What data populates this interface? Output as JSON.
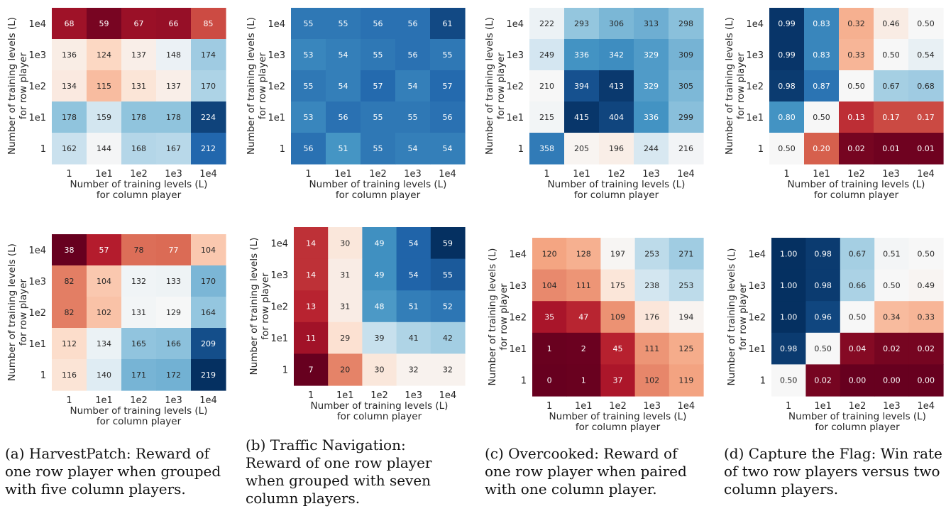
{
  "chart_data": [
    {
      "type": "heatmap",
      "subplot": "top-a",
      "x": [
        "1",
        "1e1",
        "1e2",
        "1e3",
        "1e4"
      ],
      "y": [
        "1e4",
        "1e3",
        "1e2",
        "1e1",
        "1"
      ],
      "values": [
        [
          68,
          59,
          67,
          66,
          85
        ],
        [
          136,
          124,
          137,
          148,
          174
        ],
        [
          134,
          115,
          131,
          137,
          170
        ],
        [
          178,
          159,
          178,
          178,
          224
        ],
        [
          162,
          144,
          168,
          167,
          212
        ]
      ],
      "vrange": [
        55,
        230
      ],
      "xlabel": "Number of training levels (L)",
      "xlabel2": "for column player",
      "ylabel": "Number of training levels (L)",
      "ylabel2": "for row player"
    },
    {
      "type": "heatmap",
      "subplot": "top-b",
      "x": [
        "1",
        "1e1",
        "1e2",
        "1e3",
        "1e4"
      ],
      "y": [
        "1e4",
        "1e3",
        "1e2",
        "1e1",
        "1"
      ],
      "values": [
        [
          55,
          55,
          56,
          56,
          61
        ],
        [
          53,
          54,
          55,
          56,
          55
        ],
        [
          55,
          54,
          57,
          54,
          57
        ],
        [
          53,
          56,
          55,
          55,
          56
        ],
        [
          56,
          51,
          55,
          54,
          54
        ]
      ],
      "vrange": [
        0,
        64
      ],
      "xlabel": "Number of training levels (L)",
      "xlabel2": "for column player",
      "ylabel": "Number of training levels (L)",
      "ylabel2": "for row player"
    },
    {
      "type": "heatmap",
      "subplot": "top-c",
      "x": [
        "1",
        "1e1",
        "1e2",
        "1e3",
        "1e4"
      ],
      "y": [
        "1e4",
        "1e3",
        "1e2",
        "1e1",
        "1"
      ],
      "values": [
        [
          222,
          293,
          306,
          313,
          298
        ],
        [
          249,
          336,
          342,
          329,
          309
        ],
        [
          210,
          394,
          413,
          329,
          305
        ],
        [
          215,
          415,
          404,
          336,
          299
        ],
        [
          358,
          205,
          196,
          244,
          216
        ]
      ],
      "vrange": [
        0,
        420
      ],
      "xlabel": "Number of training levels (L)",
      "xlabel2": "for column player",
      "ylabel": "Number of training levels (L)",
      "ylabel2": "for row player"
    },
    {
      "type": "heatmap",
      "subplot": "top-d",
      "x": [
        "1",
        "1e1",
        "1e2",
        "1e3",
        "1e4"
      ],
      "y": [
        "1e4",
        "1e3",
        "1e2",
        "1e1",
        "1"
      ],
      "values": [
        [
          "0.99",
          "0.83",
          "0.32",
          "0.46",
          "0.50"
        ],
        [
          "0.99",
          "0.83",
          "0.33",
          "0.50",
          "0.54"
        ],
        [
          "0.98",
          "0.87",
          "0.50",
          "0.67",
          "0.68"
        ],
        [
          "0.80",
          "0.50",
          "0.13",
          "0.17",
          "0.17"
        ],
        [
          "0.50",
          "0.20",
          "0.02",
          "0.01",
          "0.01"
        ]
      ],
      "vrange": [
        0,
        1
      ],
      "xlabel": "Number of training levels (L)",
      "xlabel2": "for column player",
      "ylabel": "Number of training levels (L)",
      "ylabel2": "for row player"
    },
    {
      "type": "heatmap",
      "subplot": "bottom-a",
      "x": [
        "1",
        "1e1",
        "1e2",
        "1e3",
        "1e4"
      ],
      "y": [
        "1e4",
        "1e3",
        "1e2",
        "1e1",
        "1"
      ],
      "values": [
        [
          38,
          57,
          78,
          77,
          104
        ],
        [
          82,
          104,
          132,
          133,
          170
        ],
        [
          82,
          102,
          131,
          129,
          164
        ],
        [
          112,
          134,
          165,
          166,
          209
        ],
        [
          116,
          140,
          171,
          172,
          219
        ]
      ],
      "vrange": [
        38,
        219
      ],
      "xlabel": "Number of training levels (L)",
      "xlabel2": "for column player",
      "ylabel": "Number of training levels (L)",
      "ylabel2": "for row player"
    },
    {
      "type": "heatmap",
      "subplot": "bottom-b",
      "x": [
        "1",
        "1e1",
        "1e2",
        "1e3",
        "1e4"
      ],
      "y": [
        "1e4",
        "1e3",
        "1e2",
        "1e1",
        "1"
      ],
      "values": [
        [
          14,
          30,
          49,
          54,
          59
        ],
        [
          14,
          31,
          49,
          54,
          55
        ],
        [
          13,
          31,
          48,
          51,
          52
        ],
        [
          11,
          29,
          39,
          41,
          42
        ],
        [
          7,
          20,
          30,
          32,
          32
        ]
      ],
      "vrange": [
        7,
        59
      ],
      "xlabel": "Number of training levels (L)",
      "xlabel2": "for column player",
      "ylabel": "Number of training levels (L)",
      "ylabel2": "for row player"
    },
    {
      "type": "heatmap",
      "subplot": "bottom-c",
      "x": [
        "1",
        "1e1",
        "1e2",
        "1e3",
        "1e4"
      ],
      "y": [
        "1e4",
        "1e3",
        "1e2",
        "1e1",
        "1"
      ],
      "values": [
        [
          120,
          128,
          197,
          253,
          271
        ],
        [
          104,
          111,
          175,
          238,
          253
        ],
        [
          35,
          47,
          109,
          176,
          194
        ],
        [
          1,
          2,
          45,
          111,
          125
        ],
        [
          0,
          1,
          37,
          102,
          119
        ]
      ],
      "vrange": [
        0,
        400
      ],
      "xlabel": "Number of training levels (L)",
      "xlabel2": "for column player",
      "ylabel": "Number of training levels (L)",
      "ylabel2": "for row player"
    },
    {
      "type": "heatmap",
      "subplot": "bottom-d",
      "x": [
        "1",
        "1e1",
        "1e2",
        "1e3",
        "1e4"
      ],
      "y": [
        "1e4",
        "1e3",
        "1e2",
        "1e1",
        "1"
      ],
      "values": [
        [
          "1.00",
          "0.98",
          "0.67",
          "0.51",
          "0.50"
        ],
        [
          "1.00",
          "0.98",
          "0.66",
          "0.50",
          "0.49"
        ],
        [
          "1.00",
          "0.96",
          "0.50",
          "0.34",
          "0.33"
        ],
        [
          "0.98",
          "0.50",
          "0.04",
          "0.02",
          "0.02"
        ],
        [
          "0.50",
          "0.02",
          "0.00",
          "0.00",
          "0.00"
        ]
      ],
      "vrange": [
        0,
        1
      ],
      "xlabel": "Number of training levels (L)",
      "xlabel2": "for column player",
      "ylabel": "Number of training levels (L)",
      "ylabel2": "for row player"
    }
  ],
  "captions": [
    "(a) HarvestPatch: Reward of one row player when grouped with five column players.",
    "(b) Traffic Navigation: Reward of one row player when grouped with seven column players.",
    "(c) Overcooked: Reward of one row player when paired with one column player.",
    "(d) Capture the Flag: Win rate of two row players versus two column players."
  ]
}
